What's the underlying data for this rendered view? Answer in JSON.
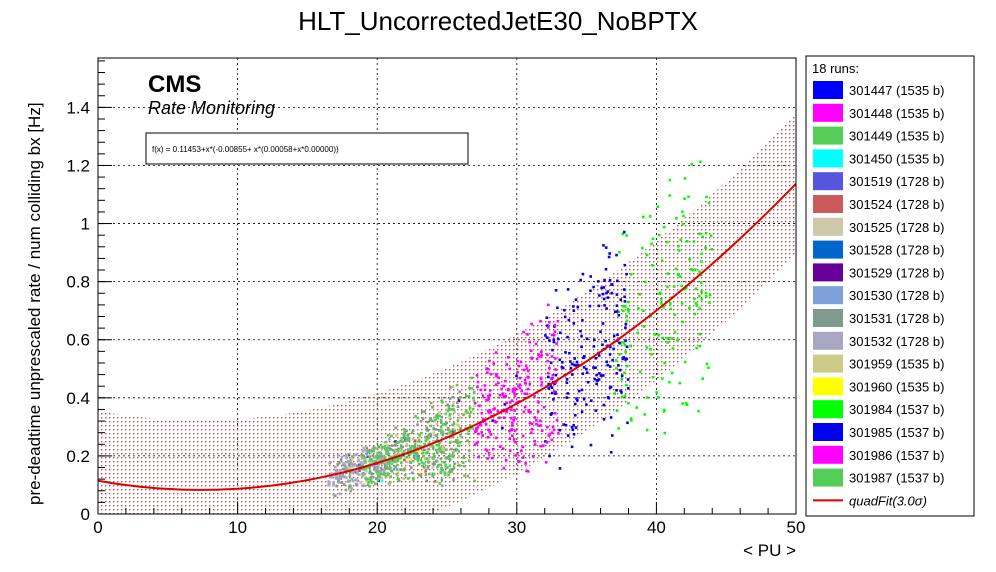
{
  "chart_data": {
    "type": "scatter",
    "title": "HLT_UncorrectedJetE30_NoBPTX",
    "xlabel": "< PU >",
    "ylabel": "pre-deadtime unprescaled rate / num colliding bx [Hz]",
    "xlim": [
      0,
      50
    ],
    "ylim": [
      0,
      1.57
    ],
    "x_ticks": [
      "0",
      "10",
      "20",
      "30",
      "40",
      "50"
    ],
    "y_ticks": [
      "0",
      "0.2",
      "0.4",
      "0.6",
      "0.8",
      "1",
      "1.2",
      "1.4"
    ],
    "grid": true,
    "cms_label": "CMS",
    "cms_sublabel": "Rate Monitoring",
    "fit_formula": "f(x) = 0.11453+x*(-0.00855+ x*(0.00058+x*0.00000))",
    "fit": {
      "name": "quadFit(3.0σ)",
      "coefficients": [
        0.11453,
        -0.00855,
        0.00058
      ],
      "band_halfwidth": 0.24,
      "color": "#dd0000"
    },
    "legend_header": "18 runs:",
    "legend_position": "right",
    "series": [
      {
        "name": "301447 (1535 b)",
        "color": "#0000ff",
        "x_range": [
          25,
          30
        ],
        "count": 5
      },
      {
        "name": "301448 (1535 b)",
        "color": "#ff00ff",
        "x_range": [
          27,
          30
        ],
        "count": 5
      },
      {
        "name": "301449 (1535 b)",
        "color": "#55cc55",
        "x_range": [
          18,
          26
        ],
        "count": 40
      },
      {
        "name": "301450 (1535 b)",
        "color": "#00ffff",
        "x_range": [
          18,
          24
        ],
        "count": 4
      },
      {
        "name": "301519 (1728 b)",
        "color": "#5555dd",
        "x_range": [
          18,
          24
        ],
        "count": 8
      },
      {
        "name": "301524 (1728 b)",
        "color": "#cc5a5a",
        "x_range": [
          18,
          26
        ],
        "count": 8
      },
      {
        "name": "301525 (1728 b)",
        "color": "#ccc8a8",
        "x_range": [
          17,
          26
        ],
        "count": 40
      },
      {
        "name": "301528 (1728 b)",
        "color": "#0066cc",
        "x_range": [
          18,
          24
        ],
        "count": 4
      },
      {
        "name": "301529 (1728 b)",
        "color": "#660099",
        "x_range": [
          18,
          26
        ],
        "count": 6
      },
      {
        "name": "301530 (1728 b)",
        "color": "#7f9fd8",
        "x_range": [
          18,
          24
        ],
        "count": 8
      },
      {
        "name": "301531 (1728 b)",
        "color": "#7f9b8c",
        "x_range": [
          17,
          26
        ],
        "count": 220
      },
      {
        "name": "301532 (1728 b)",
        "color": "#a9a6c4",
        "x_range": [
          16.5,
          21
        ],
        "count": 110
      },
      {
        "name": "301959 (1535 b)",
        "color": "#cccc88",
        "x_range": [
          18,
          27
        ],
        "count": 60
      },
      {
        "name": "301960 (1535 b)",
        "color": "#ffff00",
        "x_range": [
          20,
          24
        ],
        "count": 3
      },
      {
        "name": "301984 (1537 b)",
        "color": "#00ff00",
        "x_range": [
          37,
          44
        ],
        "count": 160
      },
      {
        "name": "301985 (1537 b)",
        "color": "#0000ee",
        "x_range": [
          32,
          38
        ],
        "count": 200
      },
      {
        "name": "301986 (1537 b)",
        "color": "#ff00ff",
        "x_range": [
          27,
          33
        ],
        "count": 230
      },
      {
        "name": "301987 (1537 b)",
        "color": "#55cc55",
        "x_range": [
          19,
          27
        ],
        "count": 260
      }
    ]
  }
}
